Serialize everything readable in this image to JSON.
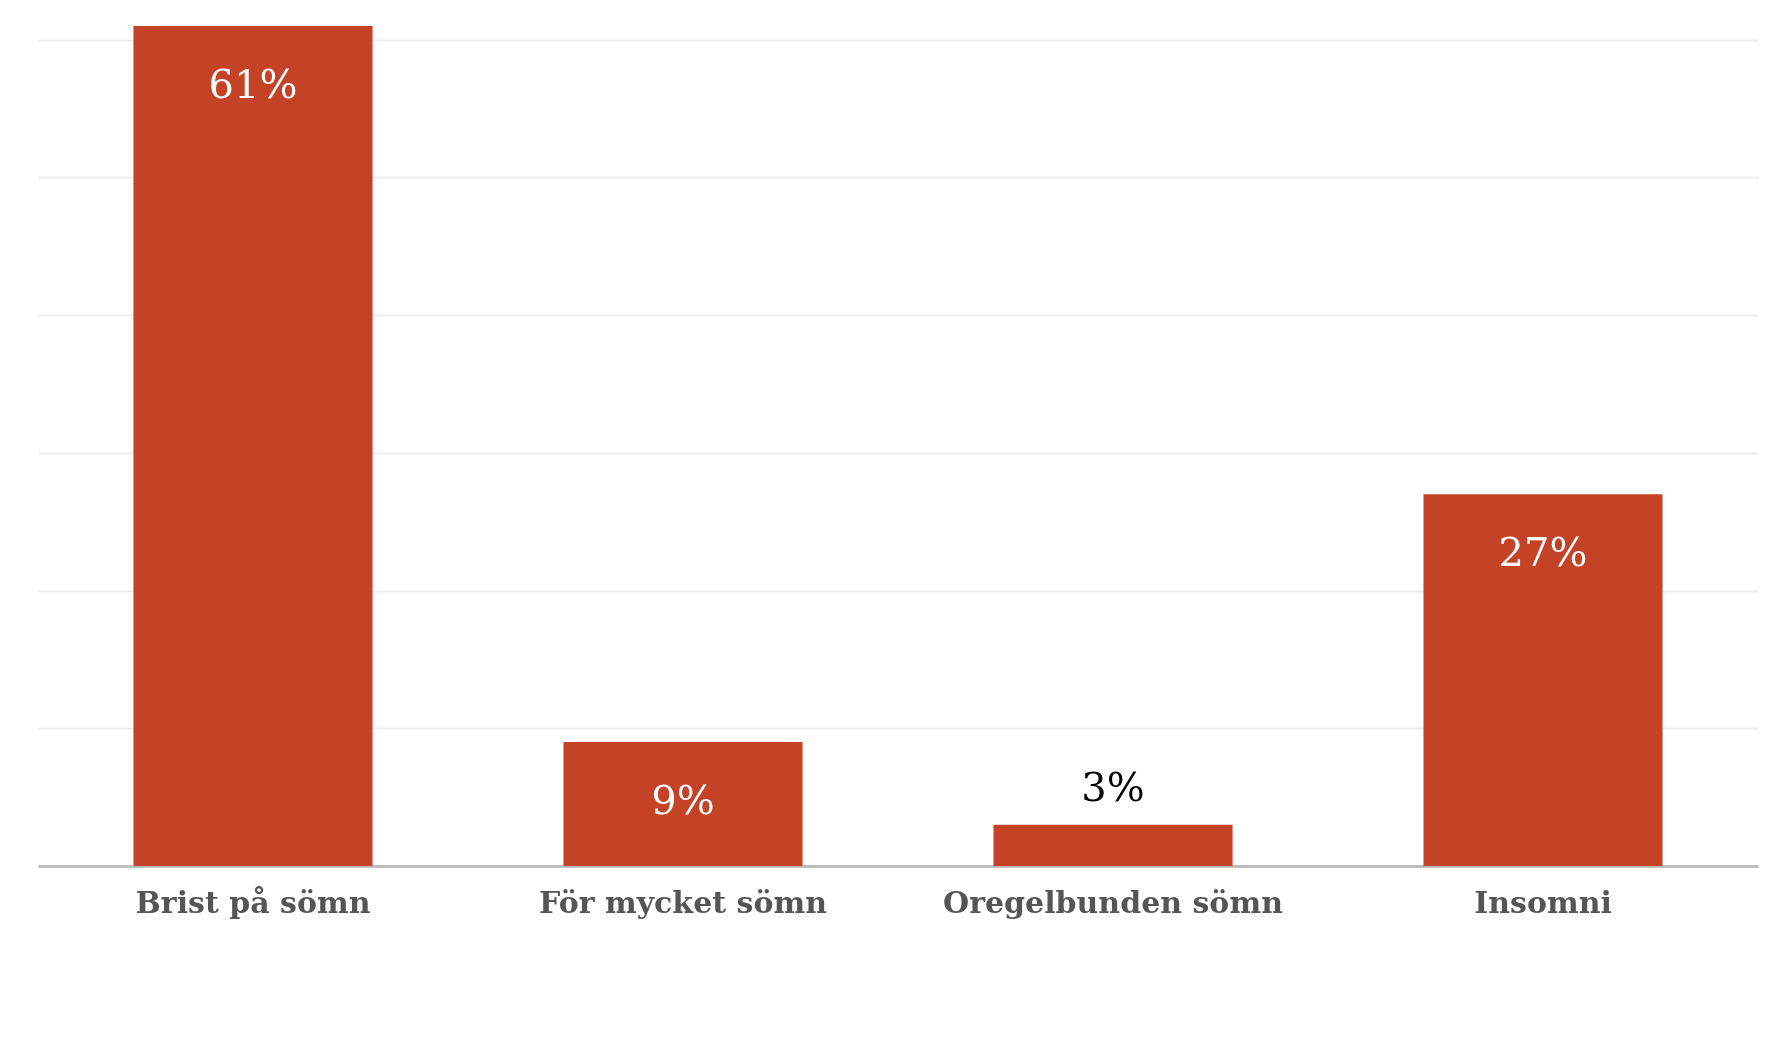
{
  "chart_data": {
    "type": "bar",
    "categories": [
      "Brist på sömn",
      "För mycket sömn",
      "Oregelbunden sömn",
      "Insomni"
    ],
    "values": [
      61,
      9,
      3,
      27
    ],
    "color": "#c44327",
    "value_labels": [
      "61%",
      "9%",
      "3%",
      "27%"
    ],
    "ylim": [
      0,
      61
    ],
    "yticks": [
      {
        "value": 0,
        "label": null
      },
      {
        "value": 10,
        "label": null
      },
      {
        "value": 20,
        "label": null
      },
      {
        "value": 30,
        "label": null
      },
      {
        "value": 40,
        "label": null
      },
      {
        "value": 50,
        "label": null
      },
      {
        "value": 60,
        "label": null
      }
    ],
    "grid": "y",
    "tick_labels": "x"
  }
}
